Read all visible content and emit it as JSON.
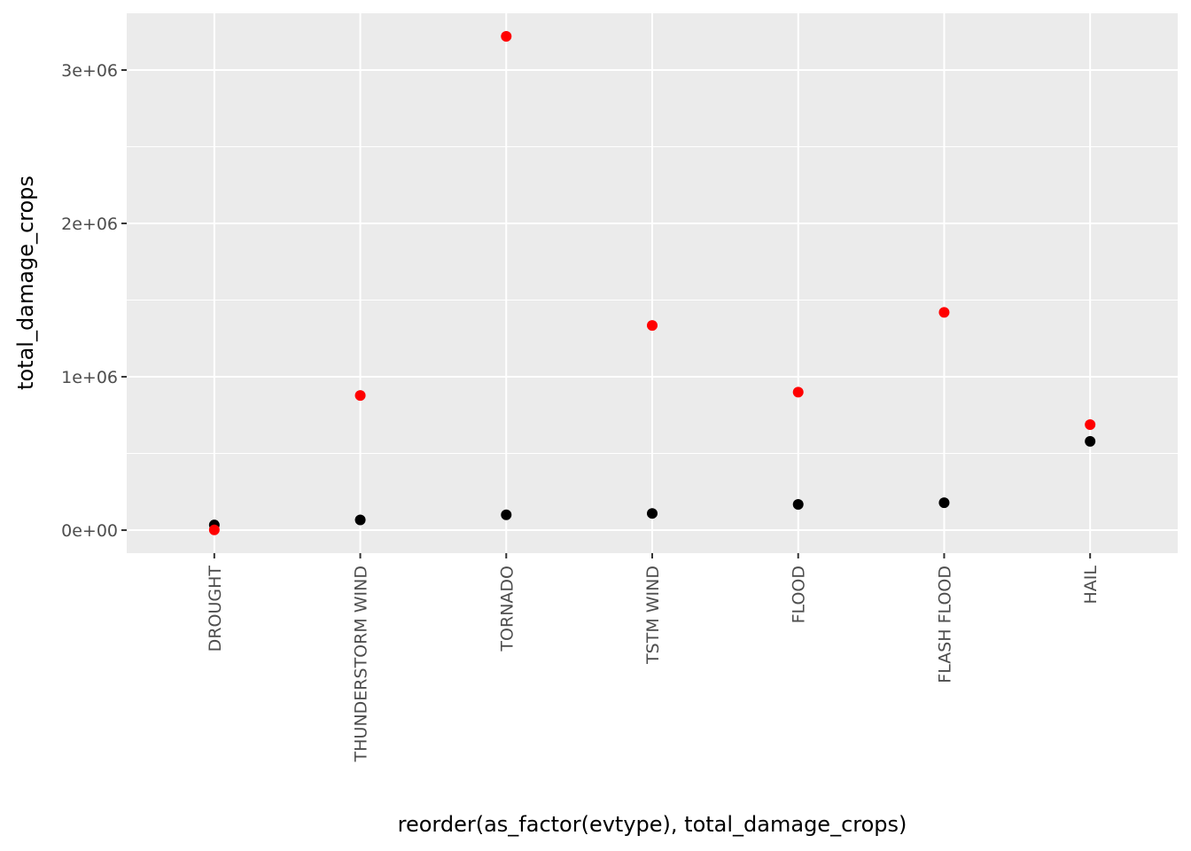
{
  "chart_data": {
    "type": "scatter",
    "title": "",
    "xlabel": "reorder(as_factor(evtype), total_damage_crops)",
    "ylabel": "total_damage_crops",
    "categories": [
      "DROUGHT",
      "THUNDERSTORM WIND",
      "TORNADO",
      "TSTM WIND",
      "FLOOD",
      "FLASH FLOOD",
      "HAIL"
    ],
    "ylim": [
      -150000,
      3370000
    ],
    "y_ticks": [
      0,
      1000000,
      2000000,
      3000000
    ],
    "y_tick_labels": [
      "0e+00",
      "1e+06",
      "2e+06",
      "3e+06"
    ],
    "grid": true,
    "series": [
      {
        "color": "#000000",
        "values": [
          33900,
          66800,
          100000,
          109000,
          168000,
          179000,
          579000
        ]
      },
      {
        "color": "#ff0000",
        "values": [
          2000,
          878000,
          3220000,
          1335000,
          900000,
          1420000,
          688000
        ]
      }
    ]
  }
}
